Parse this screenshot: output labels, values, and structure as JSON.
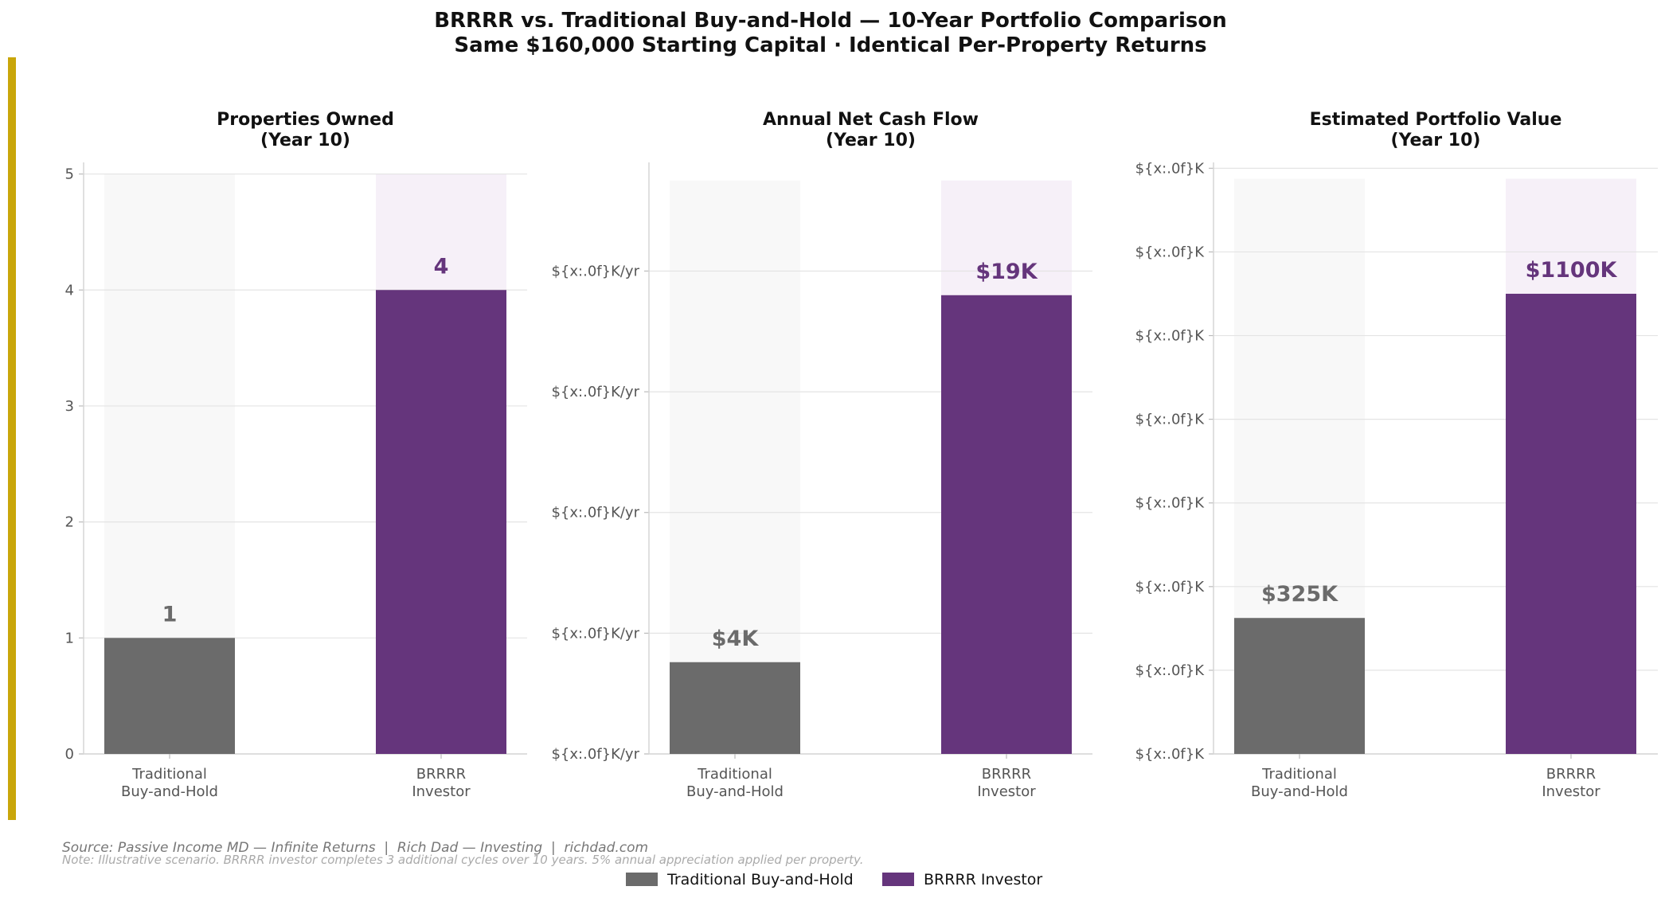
{
  "title": {
    "line1": "BRRRR vs. Traditional Buy-and-Hold — 10-Year Portfolio Comparison",
    "line2": "Same $160,000 Starting Capital · Identical Per-Property Returns"
  },
  "colors": {
    "traditional": "#6b6b6b",
    "brrrr": "#65357c",
    "accent_bar": "#c9a60a",
    "trad_bg": "#f8f8f8",
    "brrrr_bg": "#f6f0f8",
    "grid": "#e4e4e4",
    "tick_text": "#555555",
    "source_text": "#777777",
    "note_text": "#aaaaaa"
  },
  "chart_data": [
    {
      "type": "bar",
      "title_line1": "Properties Owned",
      "title_line2": "(Year 10)",
      "categories": [
        [
          "Traditional",
          "Buy-and-Hold"
        ],
        [
          "BRRRR",
          "Investor"
        ]
      ],
      "values": [
        1,
        4
      ],
      "value_labels": [
        "1",
        "4"
      ],
      "ylim": [
        0,
        5.1
      ],
      "bg_height": 5,
      "yticks": [
        0,
        1,
        2,
        3,
        4,
        5
      ],
      "ytick_labels": [
        "0",
        "1",
        "2",
        "3",
        "4",
        "5"
      ]
    },
    {
      "type": "bar",
      "title_line1": "Annual Net Cash Flow",
      "title_line2": "(Year 10)",
      "categories": [
        [
          "Traditional",
          "Buy-and-Hold"
        ],
        [
          "BRRRR",
          "Investor"
        ]
      ],
      "values": [
        3.8,
        19
      ],
      "value_labels": [
        "$4K",
        "$19K"
      ],
      "ylim": [
        0,
        24.5
      ],
      "bg_height": 23.75,
      "yticks": [
        0,
        5,
        10,
        15,
        20
      ],
      "ytick_labels": [
        "${x:.0f}K/yr",
        "${x:.0f}K/yr",
        "${x:.0f}K/yr",
        "${x:.0f}K/yr",
        "${x:.0f}K/yr"
      ]
    },
    {
      "type": "bar",
      "title_line1": "Estimated Portfolio Value",
      "title_line2": "(Year 10)",
      "categories": [
        [
          "Traditional",
          "Buy-and-Hold"
        ],
        [
          "BRRRR",
          "Investor"
        ]
      ],
      "values": [
        325,
        1100
      ],
      "value_labels": [
        "$325K",
        "$1100K"
      ],
      "ylim": [
        0,
        1414
      ],
      "bg_height": 1375,
      "yticks": [
        0,
        200,
        400,
        600,
        800,
        1000,
        1200,
        1400
      ],
      "ytick_labels": [
        "${x:.0f}K",
        "${x:.0f}K",
        "${x:.0f}K",
        "${x:.0f}K",
        "${x:.0f}K",
        "${x:.0f}K",
        "${x:.0f}K",
        "${x:.0f}K"
      ]
    }
  ],
  "footer": {
    "source": "Source: Passive Income MD — Infinite Returns  |  Rich Dad — Investing  |  richdad.com",
    "note": "Note: Illustrative scenario. BRRRR investor completes 3 additional cycles over 10 years. 5% annual appreciation applied per property."
  },
  "legend": {
    "items": [
      "Traditional Buy-and-Hold",
      "BRRRR Investor"
    ]
  }
}
